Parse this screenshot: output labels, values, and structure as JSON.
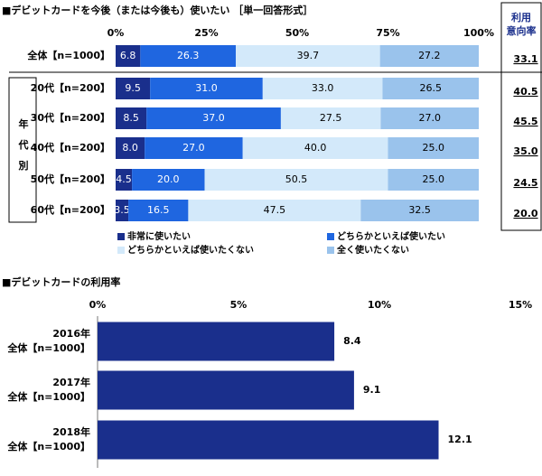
{
  "chart_data": [
    {
      "type": "stacked-bar-horizontal",
      "title": "■デビットカードを今後（または今後も）使いたい ［単一回答形式］",
      "categories": [
        "全体【n=1000】",
        "20代【n=200】",
        "30代【n=200】",
        "40代【n=200】",
        "50代【n=200】",
        "60代【n=200】"
      ],
      "group_label": "年代別",
      "series": [
        {
          "name": "非常に使いたい",
          "color": "#1a2f8c",
          "values": [
            6.8,
            9.5,
            8.5,
            8.0,
            4.5,
            3.5
          ],
          "value_labels": [
            "6.8",
            "9.5",
            "8.5",
            "8.0",
            "4.5",
            "3.5"
          ]
        },
        {
          "name": "どちらかといえば使いたい",
          "color": "#1f66e0",
          "values": [
            26.3,
            31.0,
            37.0,
            27.0,
            20.0,
            16.5
          ],
          "value_labels": [
            "26.3",
            "31.0",
            "37.0",
            "27.0",
            "20.0",
            "16.5"
          ]
        },
        {
          "name": "どちらかといえば使いたくない",
          "color": "#d3e9fa",
          "values": [
            39.7,
            33.0,
            27.5,
            40.0,
            50.5,
            47.5
          ],
          "value_labels": [
            "39.7",
            "33.0",
            "27.5",
            "40.0",
            "50.5",
            "47.5"
          ]
        },
        {
          "name": "全く使いたくない",
          "color": "#9ac3ec",
          "values": [
            27.2,
            26.5,
            27.0,
            25.0,
            25.0,
            32.5
          ],
          "value_labels": [
            "27.2",
            "26.5",
            "27.0",
            "25.0",
            "25.0",
            "32.5"
          ]
        }
      ],
      "side_header": [
        "利用",
        "意向率"
      ],
      "side_values": [
        33.1,
        40.5,
        45.5,
        35.0,
        24.5,
        20.0
      ],
      "side_value_labels": [
        "33.1",
        "40.5",
        "45.5",
        "35.0",
        "24.5",
        "20.0"
      ],
      "xlim": [
        0,
        100
      ],
      "xticks": [
        {
          "value": 0,
          "label": "0%"
        },
        {
          "value": 25,
          "label": "25%"
        },
        {
          "value": 50,
          "label": "50%"
        },
        {
          "value": 75,
          "label": "75%"
        },
        {
          "value": 100,
          "label": "100%"
        }
      ]
    },
    {
      "type": "bar-horizontal",
      "title": "■デビットカードの利用率",
      "categories": [
        "2016年",
        "2017年",
        "2018年"
      ],
      "subcategories": [
        "全体【n=1000】",
        "全体【n=1000】",
        "全体【n=1000】"
      ],
      "values": [
        8.4,
        9.1,
        12.1
      ],
      "color": "#1a2f8c",
      "xlim": [
        0,
        15
      ],
      "xticks": [
        {
          "value": 0,
          "label": "0%"
        },
        {
          "value": 5,
          "label": "5%"
        },
        {
          "value": 10,
          "label": "10%"
        },
        {
          "value": 15,
          "label": "15%"
        }
      ]
    }
  ]
}
